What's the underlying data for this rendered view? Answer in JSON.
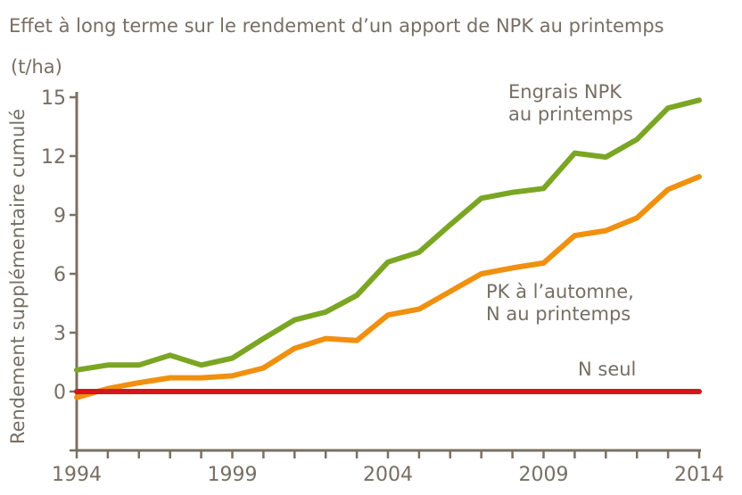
{
  "chart_data": {
    "type": "line",
    "title": "Effet à long terme sur le rendement d’un apport de NPK au printemps",
    "ylabel": "Rendement supplémentaire cumulé",
    "yunit": "(t/ha)",
    "xlabel": "",
    "xlim": [
      1994,
      2014
    ],
    "ylim": [
      -3,
      15
    ],
    "xticks": [
      1994,
      1999,
      2004,
      2009,
      2014
    ],
    "yticks": [
      0,
      3,
      6,
      9,
      12,
      15
    ],
    "grid": false,
    "x": [
      1994,
      1995,
      1996,
      1997,
      1998,
      1999,
      2000,
      2001,
      2002,
      2003,
      2004,
      2005,
      2006,
      2007,
      2008,
      2009,
      2010,
      2011,
      2012,
      2013,
      2014
    ],
    "series": [
      {
        "name": "Engrais NPK au printemps",
        "label_lines": [
          "Engrais NPK",
          "au printemps"
        ],
        "color": "#7aa623",
        "values": [
          1.1,
          1.35,
          1.35,
          1.85,
          1.35,
          1.7,
          2.7,
          3.65,
          4.05,
          4.9,
          6.6,
          7.1,
          8.5,
          9.85,
          10.15,
          10.35,
          12.15,
          11.95,
          12.85,
          14.45,
          14.85
        ]
      },
      {
        "name": "PK à l’automne, N au printemps",
        "label_lines": [
          "PK à l’automne,",
          "N au printemps"
        ],
        "color": "#f0900e",
        "values": [
          -0.3,
          0.15,
          0.45,
          0.7,
          0.7,
          0.8,
          1.2,
          2.2,
          2.7,
          2.6,
          3.9,
          4.2,
          5.1,
          6.0,
          6.3,
          6.55,
          7.95,
          8.2,
          8.85,
          10.3,
          10.95
        ]
      },
      {
        "name": "N seul",
        "label_lines": [
          "N seul"
        ],
        "color": "#d7141e",
        "values": [
          0,
          0,
          0,
          0,
          0,
          0,
          0,
          0,
          0,
          0,
          0,
          0,
          0,
          0,
          0,
          0,
          0,
          0,
          0,
          0,
          0
        ]
      }
    ]
  }
}
